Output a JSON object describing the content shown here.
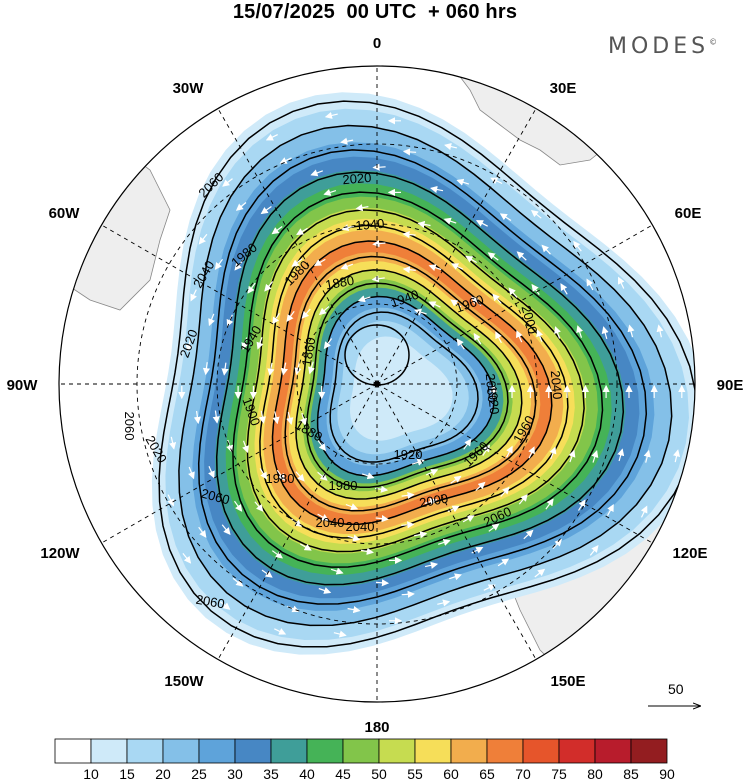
{
  "header": {
    "title": "15/07/2025  00 UTC  + 060 hrs",
    "brand": "MODES",
    "brand_mark": "©"
  },
  "map": {
    "projection": "south-polar-stereographic",
    "longitude_labels": [
      "0",
      "30E",
      "60E",
      "90E",
      "120E",
      "150E",
      "180",
      "150W",
      "120W",
      "90W",
      "60W",
      "30W"
    ],
    "contour_labels": [
      "2060",
      "2020",
      "1940",
      "1880",
      "1960",
      "1860",
      "1940",
      "1980",
      "2020",
      "2040",
      "2060",
      "2040",
      "2000",
      "2040",
      "2080",
      "1920",
      "1980",
      "1980",
      "1900",
      "1880",
      "1920",
      "2000",
      "2040",
      "2060",
      "2060",
      "2060",
      "1960",
      "2020",
      "1940",
      "1980",
      "1960"
    ],
    "field_colors": {
      "land": "#eeeeee",
      "coast": "#888888",
      "contour": "#000000",
      "vectors": "#ffffff"
    }
  },
  "vector_legend": {
    "label": "50"
  },
  "colorbar": {
    "levels": [
      "10",
      "15",
      "20",
      "25",
      "30",
      "35",
      "40",
      "45",
      "50",
      "55",
      "60",
      "65",
      "70",
      "75",
      "80",
      "85",
      "90"
    ],
    "colors": [
      "#ffffff",
      "#cfeaf9",
      "#a9d8f3",
      "#84c0e8",
      "#5ea3da",
      "#4787c4",
      "#3f9e99",
      "#45b357",
      "#82c54a",
      "#c6dc50",
      "#f6de59",
      "#f2ad4d",
      "#ef7f39",
      "#e6552b",
      "#d22d2a",
      "#b81c2c",
      "#931d20"
    ]
  }
}
